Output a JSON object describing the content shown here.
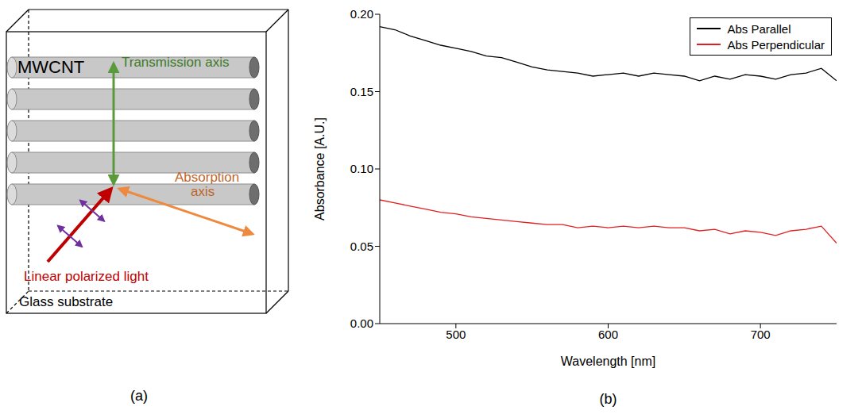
{
  "diagram": {
    "panel_label": "(a)",
    "nanotubes": "MWCNT",
    "transmission_axis": "Transmission axis",
    "absorption_axis": "Absorption axis",
    "light": "Linear polarized light",
    "substrate": "Glass substrate"
  },
  "chart_data": {
    "type": "line",
    "panel_label": "(b)",
    "x_label": "Wavelength [nm]",
    "y_label": "Absorbance [A.U.]",
    "x": [
      450,
      460,
      470,
      480,
      490,
      500,
      510,
      520,
      530,
      540,
      550,
      560,
      570,
      580,
      590,
      600,
      610,
      620,
      630,
      640,
      650,
      660,
      670,
      680,
      690,
      700,
      710,
      720,
      730,
      740,
      750
    ],
    "series": [
      {
        "name": "Abs Parallel",
        "color": "#000000",
        "values": [
          0.192,
          0.19,
          0.186,
          0.183,
          0.18,
          0.178,
          0.176,
          0.173,
          0.172,
          0.169,
          0.166,
          0.164,
          0.163,
          0.162,
          0.16,
          0.161,
          0.162,
          0.16,
          0.162,
          0.161,
          0.16,
          0.157,
          0.16,
          0.158,
          0.161,
          0.16,
          0.158,
          0.161,
          0.162,
          0.165,
          0.157
        ]
      },
      {
        "name": "Abs Perpendicular",
        "color": "#e02020",
        "values": [
          0.08,
          0.078,
          0.076,
          0.074,
          0.072,
          0.071,
          0.069,
          0.068,
          0.067,
          0.066,
          0.065,
          0.064,
          0.064,
          0.062,
          0.063,
          0.062,
          0.063,
          0.062,
          0.063,
          0.062,
          0.062,
          0.06,
          0.061,
          0.058,
          0.06,
          0.059,
          0.057,
          0.06,
          0.061,
          0.063,
          0.052
        ]
      }
    ],
    "xlim": [
      450,
      750
    ],
    "xticks": [
      500,
      600,
      700
    ],
    "ylim": [
      0,
      0.2
    ],
    "yticks": [
      {
        "value": 0,
        "label": "0.00"
      },
      0.05,
      {
        "value": 0.1,
        "label": "0.10"
      },
      0.15,
      {
        "value": 0.2,
        "label": "0.20"
      }
    ],
    "legend": "upper right",
    "grid": false
  }
}
